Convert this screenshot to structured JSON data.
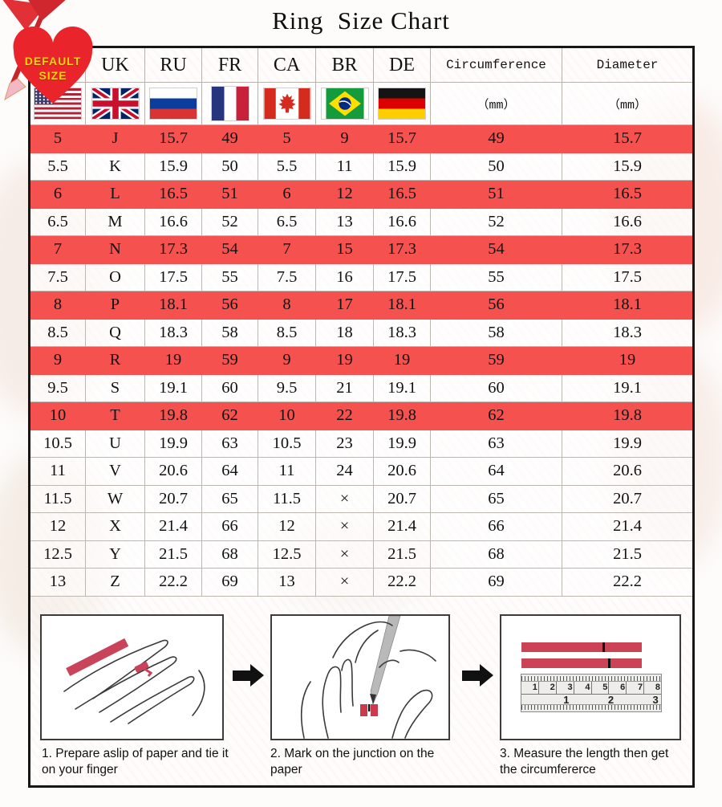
{
  "page": {
    "title": "Ring  Size Chart"
  },
  "badge": {
    "line1": "DEFAULT",
    "line2": "SIZE"
  },
  "table": {
    "mm": "（mm）"
  },
  "colors": {
    "highlight_red": "#f4514f",
    "strip_red": "#cb4354",
    "badge_heart": "#e9252b",
    "badge_text": "#ffd400"
  },
  "chart_data": {
    "type": "table",
    "title": "Ring Size Chart",
    "columns": [
      "US",
      "UK",
      "RU",
      "FR",
      "CA",
      "BR",
      "DE",
      "Circumference",
      "Diameter"
    ],
    "units_row": [
      "us-flag",
      "uk-flag",
      "ru-flag",
      "fr-flag",
      "ca-flag",
      "br-flag",
      "de-flag",
      "（mm）",
      "（mm）"
    ],
    "rows": [
      {
        "highlight": true,
        "values": [
          "5",
          "J",
          "15.7",
          "49",
          "5",
          "9",
          "15.7",
          "49",
          "15.7"
        ]
      },
      {
        "highlight": false,
        "values": [
          "5.5",
          "K",
          "15.9",
          "50",
          "5.5",
          "11",
          "15.9",
          "50",
          "15.9"
        ]
      },
      {
        "highlight": true,
        "values": [
          "6",
          "L",
          "16.5",
          "51",
          "6",
          "12",
          "16.5",
          "51",
          "16.5"
        ]
      },
      {
        "highlight": false,
        "values": [
          "6.5",
          "M",
          "16.6",
          "52",
          "6.5",
          "13",
          "16.6",
          "52",
          "16.6"
        ]
      },
      {
        "highlight": true,
        "values": [
          "7",
          "N",
          "17.3",
          "54",
          "7",
          "15",
          "17.3",
          "54",
          "17.3"
        ]
      },
      {
        "highlight": false,
        "values": [
          "7.5",
          "O",
          "17.5",
          "55",
          "7.5",
          "16",
          "17.5",
          "55",
          "17.5"
        ]
      },
      {
        "highlight": true,
        "values": [
          "8",
          "P",
          "18.1",
          "56",
          "8",
          "17",
          "18.1",
          "56",
          "18.1"
        ]
      },
      {
        "highlight": false,
        "values": [
          "8.5",
          "Q",
          "18.3",
          "58",
          "8.5",
          "18",
          "18.3",
          "58",
          "18.3"
        ]
      },
      {
        "highlight": true,
        "values": [
          "9",
          "R",
          "19",
          "59",
          "9",
          "19",
          "19",
          "59",
          "19"
        ]
      },
      {
        "highlight": false,
        "values": [
          "9.5",
          "S",
          "19.1",
          "60",
          "9.5",
          "21",
          "19.1",
          "60",
          "19.1"
        ]
      },
      {
        "highlight": true,
        "values": [
          "10",
          "T",
          "19.8",
          "62",
          "10",
          "22",
          "19.8",
          "62",
          "19.8"
        ]
      },
      {
        "highlight": false,
        "values": [
          "10.5",
          "U",
          "19.9",
          "63",
          "10.5",
          "23",
          "19.9",
          "63",
          "19.9"
        ]
      },
      {
        "highlight": false,
        "values": [
          "11",
          "V",
          "20.6",
          "64",
          "11",
          "24",
          "20.6",
          "64",
          "20.6"
        ]
      },
      {
        "highlight": false,
        "values": [
          "11.5",
          "W",
          "20.7",
          "65",
          "11.5",
          "×",
          "20.7",
          "65",
          "20.7"
        ]
      },
      {
        "highlight": false,
        "values": [
          "12",
          "X",
          "21.4",
          "66",
          "12",
          "×",
          "21.4",
          "66",
          "21.4"
        ]
      },
      {
        "highlight": false,
        "values": [
          "12.5",
          "Y",
          "21.5",
          "68",
          "12.5",
          "×",
          "21.5",
          "68",
          "21.5"
        ]
      },
      {
        "highlight": false,
        "values": [
          "13",
          "Z",
          "22.2",
          "69",
          "13",
          "×",
          "22.2",
          "69",
          "22.2"
        ]
      }
    ]
  },
  "instructions": {
    "steps": [
      {
        "caption": "1. Prepare aslip of paper and tie it on your finger"
      },
      {
        "caption": "2. Mark on the junction on the paper"
      },
      {
        "caption": "3. Measure the length then get the circumfererce",
        "ruler_cm": [
          "1",
          "2",
          "3",
          "4",
          "5",
          "6",
          "7",
          "8"
        ],
        "ruler_inch": [
          "1",
          "2",
          "3"
        ]
      }
    ]
  }
}
